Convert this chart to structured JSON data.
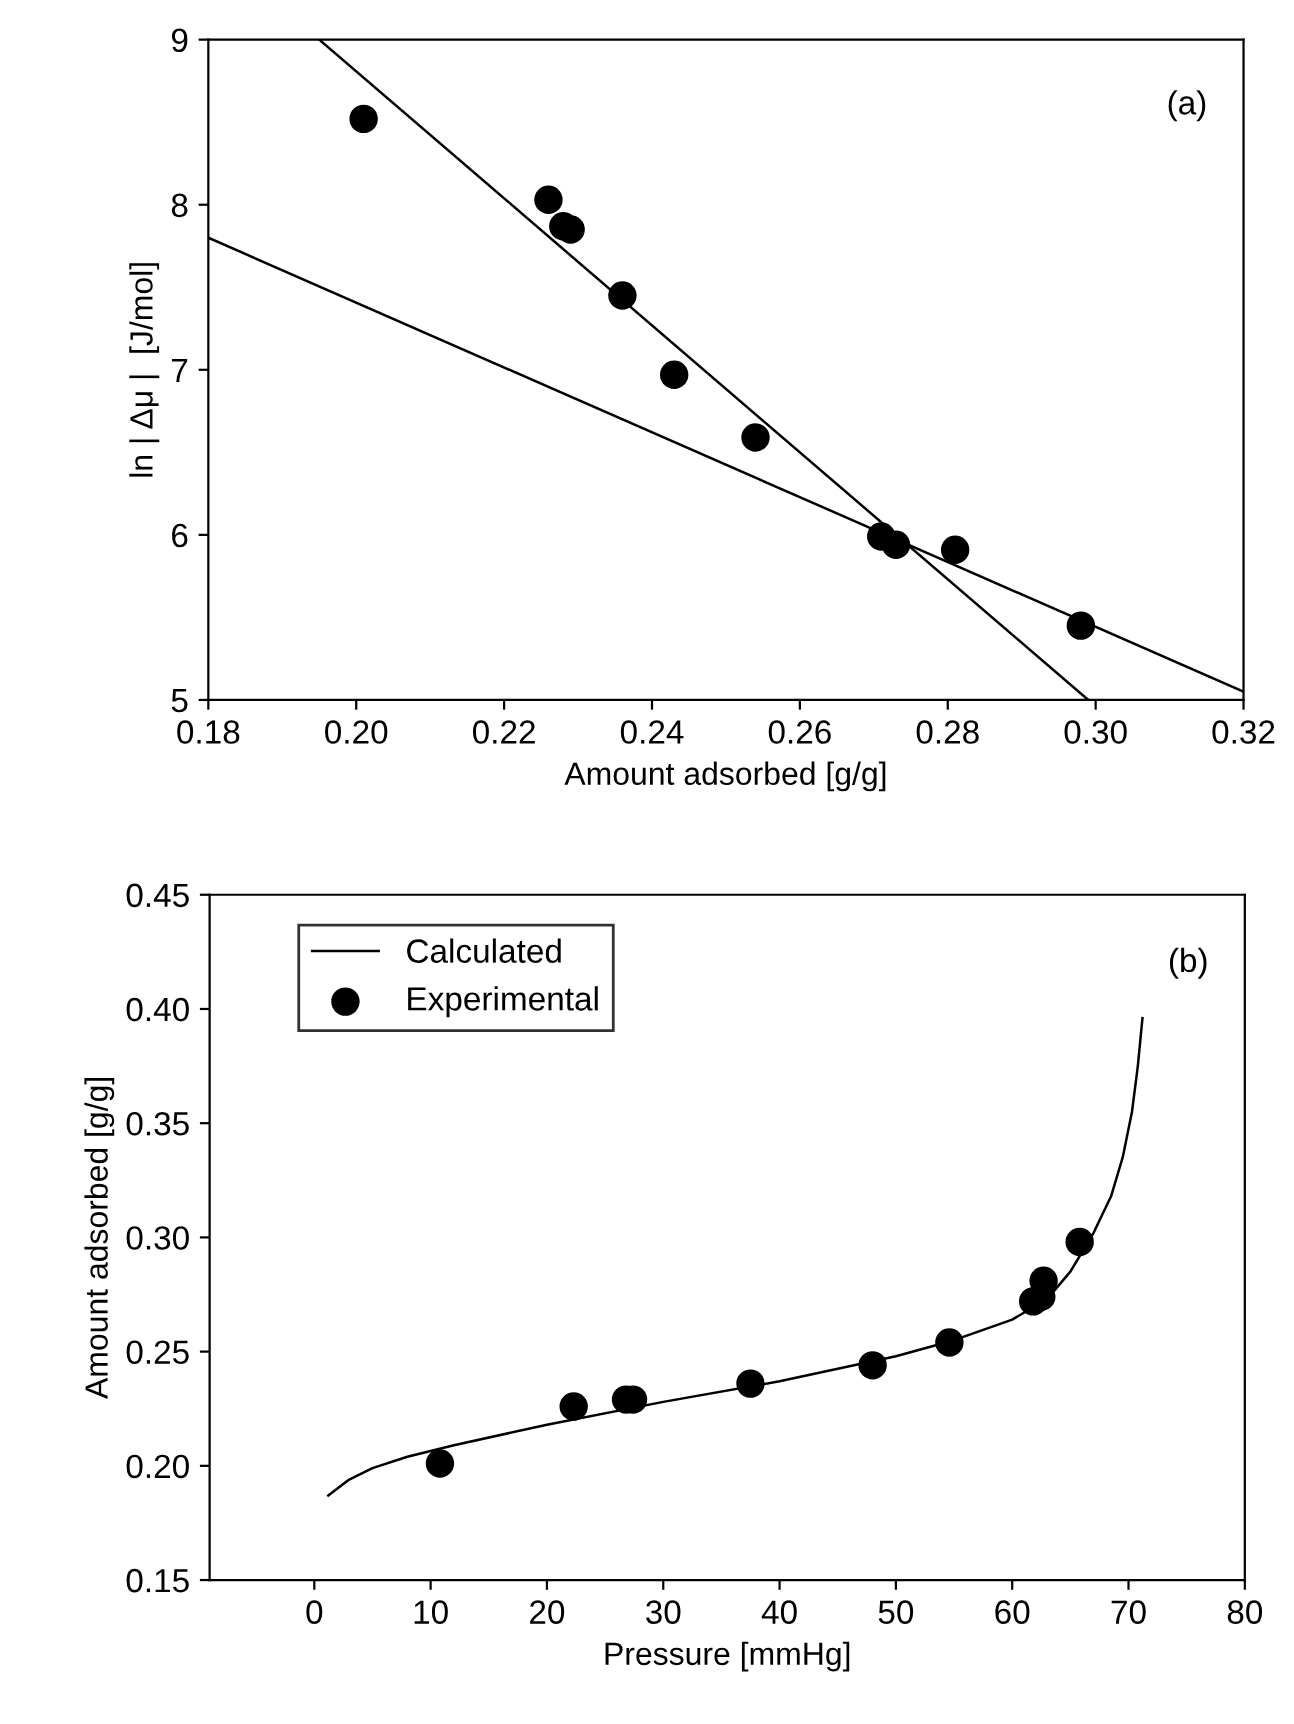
{
  "chart_data": [
    {
      "type": "scatter",
      "xlabel": "Amount adsorbed [g/g]",
      "ylabel": "ln | Δμ |  [J/mol]",
      "annotations": [
        "(a)"
      ],
      "xlim": [
        0.18,
        0.32
      ],
      "ylim": [
        5,
        9
      ],
      "xticks": [
        {
          "value": 0.18,
          "label": "0.18"
        },
        {
          "value": 0.2,
          "label": "0.20"
        },
        {
          "value": 0.22,
          "label": "0.22"
        },
        {
          "value": 0.24,
          "label": "0.24"
        },
        {
          "value": 0.26,
          "label": "0.26"
        },
        {
          "value": 0.28,
          "label": "0.28"
        },
        {
          "value": 0.3,
          "label": "0.30"
        },
        {
          "value": 0.32,
          "label": "0.32"
        }
      ],
      "yticks": [
        5,
        6,
        7,
        8,
        9
      ],
      "grid": false,
      "legend": false,
      "series": [
        {
          "type": "scatter",
          "color": "#000000",
          "marker": "circle",
          "x": [
            0.201,
            0.226,
            0.228,
            0.229,
            0.236,
            0.243,
            0.254,
            0.271,
            0.273,
            0.281,
            0.298
          ],
          "values": [
            8.52,
            8.03,
            7.87,
            7.85,
            7.45,
            6.97,
            6.59,
            5.99,
            5.94,
            5.91,
            5.45
          ]
        },
        {
          "type": "line",
          "color": "#000000",
          "line_style": "solid",
          "x": [
            0.195,
            0.299
          ],
          "values": [
            9,
            5
          ]
        },
        {
          "type": "line",
          "color": "#000000",
          "line_style": "solid",
          "x": [
            0.18,
            0.32
          ],
          "values": [
            7.8,
            5.05
          ]
        }
      ]
    },
    {
      "type": "scatter",
      "xlabel": "Pressure [mmHg]",
      "ylabel": "Amount adsorbed [g/g]",
      "annotations": [
        "(b)"
      ],
      "xlim": [
        -9,
        80
      ],
      "ylim": [
        0.15,
        0.45
      ],
      "xticks": [
        0,
        10,
        20,
        30,
        40,
        50,
        60,
        70,
        80
      ],
      "yticks": [
        {
          "value": 0.15,
          "label": "0.15"
        },
        {
          "value": 0.2,
          "label": "0.20"
        },
        {
          "value": 0.25,
          "label": "0.25"
        },
        {
          "value": 0.3,
          "label": "0.30"
        },
        {
          "value": 0.35,
          "label": "0.35"
        },
        {
          "value": 0.4,
          "label": "0.40"
        },
        {
          "value": 0.45,
          "label": "0.45"
        }
      ],
      "grid": false,
      "legend": "top left",
      "series": [
        {
          "type": "line",
          "name": "Calculated",
          "color": "#000000",
          "line_style": "solid",
          "x": [
            1.2,
            3,
            5,
            8,
            12,
            20,
            30,
            40,
            50,
            55,
            60,
            63,
            65,
            67,
            68.5,
            69.5,
            70.3,
            70.8,
            71.2
          ],
          "values": [
            0.187,
            0.194,
            0.199,
            0.204,
            0.209,
            0.218,
            0.228,
            0.237,
            0.248,
            0.255,
            0.264,
            0.273,
            0.285,
            0.302,
            0.318,
            0.335,
            0.355,
            0.375,
            0.396
          ]
        },
        {
          "type": "scatter",
          "name": "Experimental",
          "color": "#000000",
          "marker": "circle",
          "x": [
            10.8,
            22.3,
            26.8,
            27.4,
            37.5,
            48,
            54.6,
            61.8,
            62.5,
            62.7,
            65.8
          ],
          "values": [
            0.201,
            0.226,
            0.229,
            0.229,
            0.236,
            0.244,
            0.254,
            0.272,
            0.274,
            0.281,
            0.298
          ]
        }
      ]
    }
  ]
}
